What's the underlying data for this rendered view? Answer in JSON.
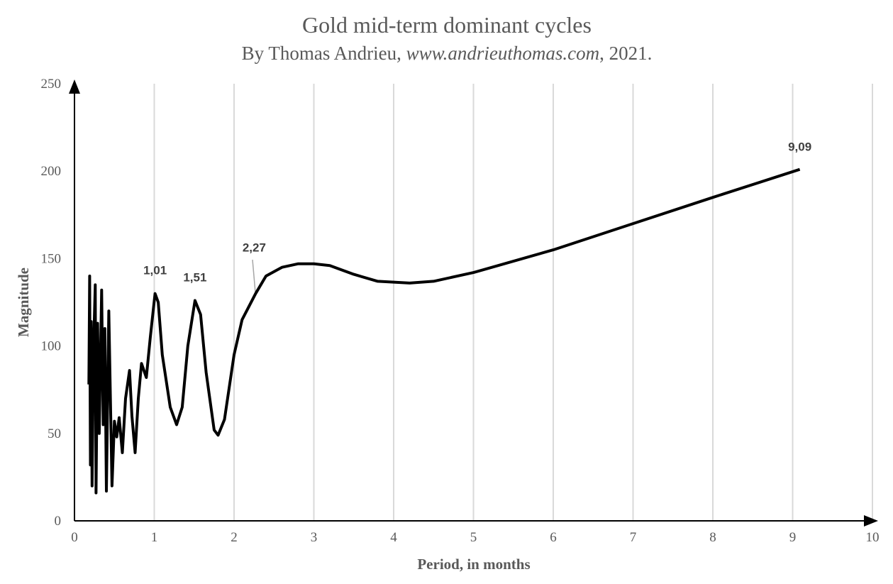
{
  "chart_data": {
    "type": "line",
    "title": "Gold mid-term dominant cycles",
    "subtitle": [
      "By Thomas Andrieu, ",
      "www.andrieuthomas.com",
      ", 2021."
    ],
    "x_label": "Period, in months",
    "y_label": "Magnitude",
    "x": [
      0.18,
      0.19,
      0.2,
      0.21,
      0.22,
      0.24,
      0.26,
      0.27,
      0.29,
      0.31,
      0.34,
      0.36,
      0.38,
      0.4,
      0.43,
      0.47,
      0.5,
      0.53,
      0.56,
      0.6,
      0.64,
      0.69,
      0.72,
      0.76,
      0.8,
      0.84,
      0.9,
      0.95,
      1.01,
      1.05,
      1.1,
      1.2,
      1.28,
      1.35,
      1.42,
      1.51,
      1.58,
      1.65,
      1.75,
      1.8,
      1.88,
      2.0,
      2.1,
      2.27,
      2.4,
      2.6,
      2.8,
      3.0,
      3.2,
      3.5,
      3.8,
      4.2,
      4.5,
      5.0,
      6.0,
      7.0,
      8.0,
      9.09
    ],
    "series": [
      {
        "color": "#000000",
        "values": [
          78,
          140,
          32,
          114,
          20,
          100,
          135,
          16,
          113,
          50,
          132,
          55,
          110,
          17,
          120,
          20,
          57,
          48,
          59,
          39,
          70,
          86,
          60,
          39,
          70,
          90,
          82,
          105,
          130,
          125,
          95,
          65,
          55,
          65,
          100,
          126,
          118,
          85,
          52,
          49,
          58,
          95,
          115,
          130,
          140,
          145,
          147,
          147,
          146,
          141,
          137,
          136,
          137,
          142,
          155,
          170,
          185,
          201
        ]
      }
    ],
    "annotations": [
      {
        "text": "1,01",
        "x": 1.01,
        "y": 130
      },
      {
        "text": "1,51",
        "x": 1.51,
        "y": 126
      },
      {
        "text": "2,27",
        "x": 2.27,
        "y": 130
      },
      {
        "text": "9,09",
        "x": 9.09,
        "y": 201
      }
    ],
    "xlim": [
      0,
      10
    ],
    "xticks": [
      0,
      1,
      2,
      3,
      4,
      5,
      6,
      7,
      8,
      9,
      10
    ],
    "ylim": [
      0,
      250
    ],
    "yticks": [
      0,
      50,
      100,
      150,
      200,
      250
    ],
    "grid": "x"
  }
}
